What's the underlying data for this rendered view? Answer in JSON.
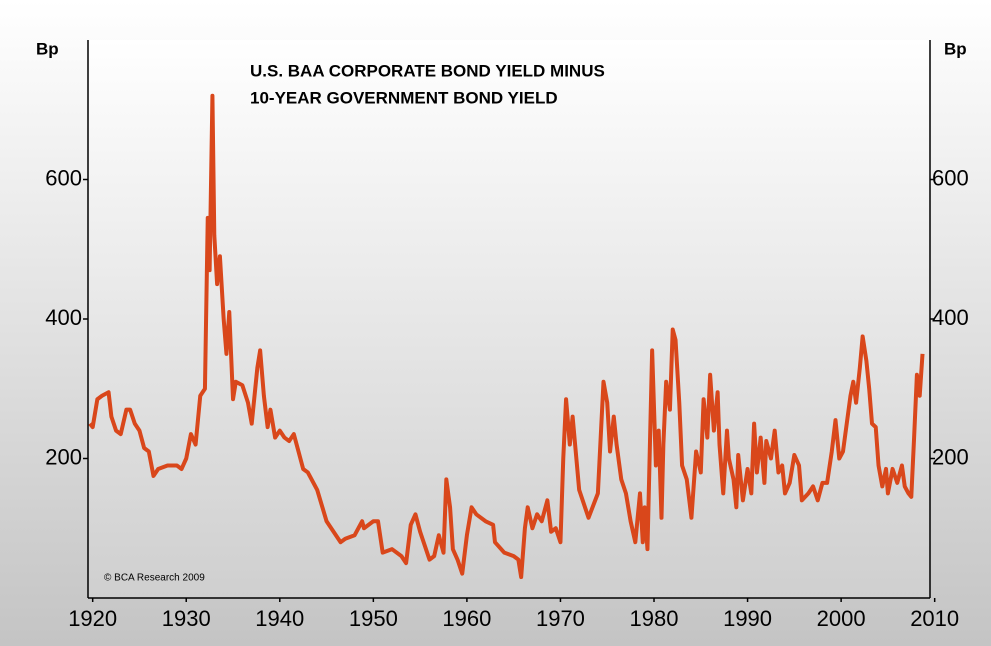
{
  "chart_data": {
    "type": "line",
    "title": [
      "U.S. BAA CORPORATE BOND YIELD MINUS",
      "10-YEAR GOVERNMENT BOND YIELD"
    ],
    "ylabel": "Bp",
    "y2label": "Bp",
    "credit": "© BCA Research 2009",
    "color": "#d9471b",
    "xlim": [
      1919.5,
      2009.5
    ],
    "xticks": [
      1920,
      1930,
      1940,
      1950,
      1960,
      1970,
      1980,
      1990,
      2000,
      2010
    ],
    "ylim": [
      0,
      800
    ],
    "yticks": [
      200,
      400,
      600
    ],
    "y2lim": [
      0,
      800
    ],
    "y2ticks": [
      200,
      400,
      600
    ],
    "x": [
      1919.7,
      1920,
      1920.5,
      1921,
      1921.7,
      1922,
      1922.5,
      1923,
      1923.6,
      1924,
      1924.5,
      1925,
      1925.5,
      1926,
      1926.5,
      1927,
      1928,
      1929,
      1929.5,
      1930,
      1930.5,
      1931,
      1931.5,
      1932,
      1932.3,
      1932.5,
      1932.8,
      1933,
      1933.3,
      1933.6,
      1934,
      1934.3,
      1934.6,
      1935,
      1935.3,
      1936,
      1936.6,
      1937,
      1937.6,
      1937.9,
      1938.3,
      1938.7,
      1939,
      1939.5,
      1940,
      1940.5,
      1941,
      1941.5,
      1942,
      1942.5,
      1943,
      1944,
      1945,
      1946,
      1946.5,
      1947,
      1948,
      1948.8,
      1949,
      1950,
      1950.5,
      1951,
      1952,
      1953,
      1953.5,
      1954,
      1954.5,
      1955,
      1956,
      1956.5,
      1957,
      1957.5,
      1957.8,
      1958.2,
      1958.5,
      1959,
      1959.5,
      1960,
      1960.5,
      1961,
      1962,
      1962.8,
      1963,
      1964,
      1965,
      1965.5,
      1965.8,
      1966.2,
      1966.5,
      1967,
      1967.5,
      1968,
      1968.6,
      1969,
      1969.5,
      1970,
      1970.3,
      1970.6,
      1971,
      1971.3,
      1971.7,
      1972,
      1973,
      1974,
      1974.6,
      1975,
      1975.3,
      1975.7,
      1976,
      1976.5,
      1977,
      1977.5,
      1978,
      1978.5,
      1978.8,
      1979,
      1979.3,
      1979.8,
      1980.2,
      1980.5,
      1980.8,
      1981,
      1981.3,
      1981.7,
      1982,
      1982.3,
      1982.7,
      1983,
      1983.5,
      1984,
      1984.5,
      1985,
      1985.3,
      1985.7,
      1986,
      1986.4,
      1986.8,
      1987,
      1987.4,
      1987.8,
      1988,
      1988.5,
      1988.8,
      1989,
      1989.5,
      1990,
      1990.4,
      1990.7,
      1991,
      1991.4,
      1991.8,
      1992,
      1992.5,
      1992.9,
      1993.3,
      1993.7,
      1994,
      1994.5,
      1995,
      1995.5,
      1995.8,
      1996.5,
      1997,
      1997.5,
      1998,
      1998.5,
      1999,
      1999.4,
      1999.8,
      2000.2,
      2000.6,
      2001,
      2001.3,
      2001.6,
      2002,
      2002.3,
      2002.7,
      2003,
      2003.3,
      2003.7,
      2004,
      2004.4,
      2004.8,
      2005,
      2005.5,
      2006,
      2006.5,
      2006.8,
      2007.2,
      2007.5,
      2007.8,
      2008.1,
      2008.4,
      2008.7
    ],
    "values": [
      250,
      245,
      285,
      290,
      295,
      260,
      240,
      235,
      270,
      270,
      250,
      240,
      215,
      210,
      175,
      185,
      190,
      190,
      185,
      200,
      235,
      220,
      290,
      300,
      545,
      470,
      720,
      520,
      450,
      490,
      400,
      350,
      410,
      285,
      310,
      305,
      280,
      250,
      330,
      355,
      290,
      245,
      270,
      230,
      240,
      230,
      225,
      235,
      210,
      185,
      180,
      155,
      110,
      90,
      80,
      85,
      90,
      110,
      100,
      110,
      110,
      65,
      70,
      60,
      50,
      105,
      120,
      95,
      55,
      60,
      90,
      65,
      170,
      130,
      70,
      55,
      35,
      90,
      130,
      120,
      110,
      105,
      80,
      65,
      60,
      55,
      30,
      100,
      130,
      100,
      120,
      110,
      140,
      95,
      100,
      80,
      200,
      285,
      220,
      260,
      200,
      155,
      115,
      150,
      310,
      280,
      210,
      260,
      220,
      170,
      150,
      110,
      80,
      150,
      80,
      130,
      70,
      355,
      190,
      240,
      115,
      220,
      310,
      270,
      385,
      370,
      280,
      190,
      170,
      115,
      210,
      180,
      285,
      230,
      320,
      240,
      295,
      220,
      150,
      240,
      200,
      170,
      130,
      205,
      140,
      185,
      150,
      250,
      180,
      230,
      165,
      225,
      200,
      240,
      180,
      190,
      150,
      165,
      205,
      190,
      140,
      150,
      160,
      140,
      165,
      165,
      210,
      255,
      200,
      210,
      250,
      290,
      310,
      280,
      330,
      375,
      340,
      300,
      250,
      245,
      190,
      160,
      185,
      150,
      185,
      165,
      190,
      160,
      150,
      145,
      230,
      320,
      290,
      350
    ]
  }
}
